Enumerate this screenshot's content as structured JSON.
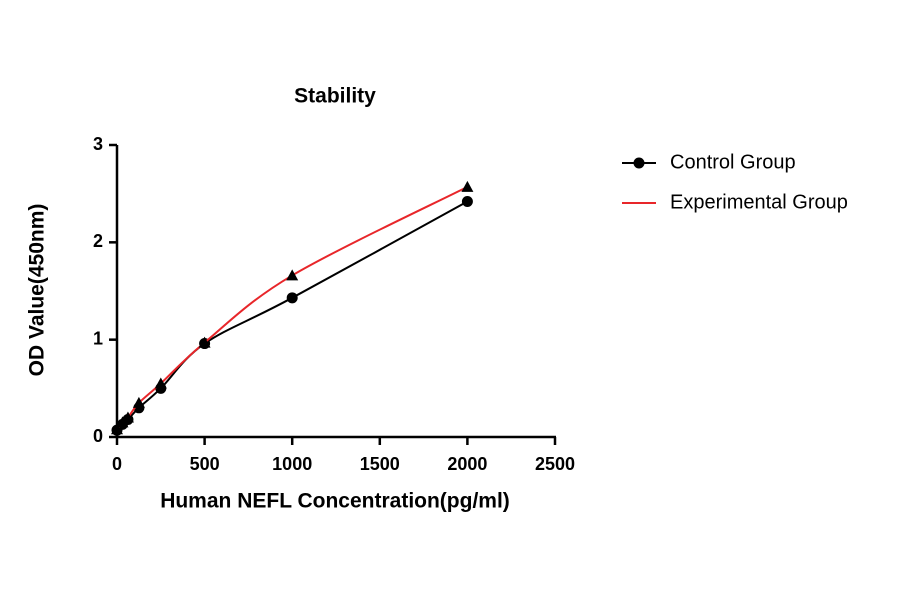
{
  "chart_data": {
    "type": "scatter",
    "title": "Stability",
    "xlabel": "Human NEFL Concentration(pg/ml)",
    "ylabel": "OD Value(450nm)",
    "x": [
      0,
      31.25,
      62.5,
      125,
      250,
      500,
      1000,
      2000
    ],
    "series": [
      {
        "name": "Control Group",
        "color": "#000000",
        "marker": "circle",
        "legend_marker": true,
        "values": [
          0.07,
          0.13,
          0.18,
          0.3,
          0.5,
          0.96,
          1.43,
          2.42
        ]
      },
      {
        "name": "Experimental Group",
        "color": "#e8262a",
        "marker": "triangle",
        "legend_marker": false,
        "values": [
          0.08,
          0.15,
          0.2,
          0.35,
          0.55,
          0.97,
          1.66,
          2.57
        ]
      }
    ],
    "xlim": [
      0,
      2500
    ],
    "xticks": [
      0,
      500,
      1000,
      1500,
      2000,
      2500
    ],
    "ylim": [
      0,
      3
    ],
    "yticks": [
      0,
      1,
      2,
      3
    ],
    "legend": "right"
  }
}
